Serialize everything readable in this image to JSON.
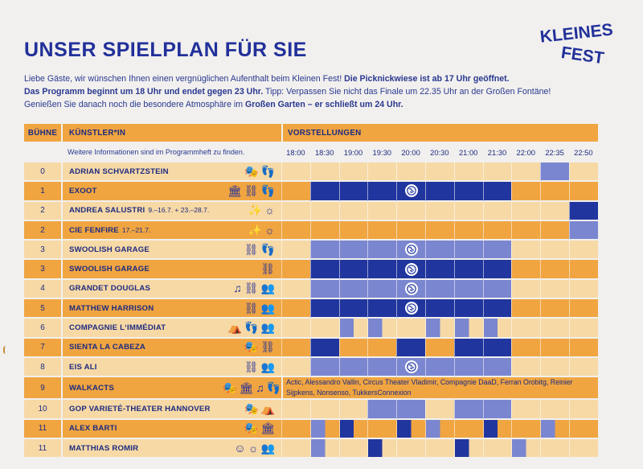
{
  "title": "UNSER SPIELPLAN FÜR SIE",
  "logo": {
    "line1": "KLEINES",
    "line2": "FEST"
  },
  "intro": {
    "p1": "Liebe Gäste, wir wünschen Ihnen einen vergnüglichen Aufenthalt beim Kleinen Fest! ",
    "p1_bold": "Die Picknickwiese ist ab 17 Uhr geöffnet.",
    "p2_bold": "Das Programm beginnt um 18 Uhr und endet gegen 23 Uhr.",
    "p2": " Tipp: Verpassen Sie nicht das Finale um 22.35 Uhr an der Großen Fontäne!",
    "p3": "Genießen Sie danach noch die besondere Atmosphäre im ",
    "p3_bold": "Großen Garten – er schließt um 24 Uhr."
  },
  "table": {
    "headers": {
      "stage": "BÜHNE",
      "artist": "KÜNSTLER*IN",
      "performances": "VORSTELLUNGEN"
    },
    "note": "Weitere Informationen sind im Programmheft zu finden.",
    "times": [
      "18:00",
      "18:30",
      "19:00",
      "19:30",
      "20:00",
      "20:30",
      "21:00",
      "21:30",
      "22:00",
      "22:35",
      "22:50"
    ],
    "rows": [
      {
        "stage": "0",
        "artist": "ADRIAN SCHVARTZSTEIN",
        "dates": "",
        "icons": [
          "🎭",
          "👣"
        ]
      },
      {
        "stage": "1",
        "artist": "EXOOT",
        "dates": "",
        "icons": [
          "🏛",
          "⛓",
          "👣"
        ]
      },
      {
        "stage": "2",
        "artist": "ANDREA SALUSTRI",
        "dates": "9.–16.7. + 23.–28.7.",
        "icons": [
          "✨",
          "☼"
        ]
      },
      {
        "stage": "2",
        "artist": "CIE FENFIRE",
        "dates": "17.–21.7.",
        "icons": [
          "✨",
          "☼"
        ]
      },
      {
        "stage": "3",
        "artist": "SWOOLISH GARAGE",
        "dates": "",
        "icons": [
          "⛓",
          "👣"
        ]
      },
      {
        "stage": "3",
        "artist": "SWOOLISH GARAGE",
        "dates": "",
        "icons": [
          "⛓"
        ]
      },
      {
        "stage": "4",
        "artist": "GRANDET DOUGLAS",
        "dates": "",
        "icons": [
          "♫",
          "⛓",
          "👥"
        ]
      },
      {
        "stage": "5",
        "artist": "MATTHEW HARRISON",
        "dates": "",
        "icons": [
          "⛓",
          "👥"
        ]
      },
      {
        "stage": "6",
        "artist": "COMPAGNIE L‘IMMÉDIAT",
        "dates": "",
        "icons": [
          "⛺",
          "👣",
          "👥"
        ]
      },
      {
        "stage": "7",
        "artist": "SIENTA LA CABEZA",
        "dates": "",
        "icons": [
          "🎭",
          "⛓"
        ]
      },
      {
        "stage": "8",
        "artist": "EIS ALI",
        "dates": "",
        "icons": [
          "⛓",
          "👥"
        ]
      },
      {
        "stage": "9",
        "artist": "WALKACTS",
        "dates": "",
        "icons": [
          "🎭",
          "🏛",
          "♫",
          "👣"
        ],
        "list": "Actic, Alessandro Vallin, Circus Theater Vladimir, Compagnie DaaD, Ferran Orobitg, Reinier Sijpkens, Nonsenso, TukkersConnexion"
      },
      {
        "stage": "10",
        "artist": "GOP VARIETÉ-THEATER HANNOVER",
        "dates": "",
        "icons": [
          "🎭",
          "⛺"
        ]
      },
      {
        "stage": "11",
        "artist": "ALEX BARTI",
        "dates": "",
        "icons": [
          "🎭",
          "🏛"
        ]
      },
      {
        "stage": "11",
        "artist": "MATTHIAS ROMIR",
        "dates": "",
        "icons": [
          "☺",
          "☼",
          "👥"
        ]
      }
    ]
  },
  "colors": {
    "accent_dark": "#f0a541",
    "accent_light": "#f7d9a6",
    "slot_dark": "#20359e",
    "slot_light": "#7a86d0",
    "title": "#22309a"
  },
  "icon_names": [
    "mask-icon",
    "footsteps-icon",
    "temple-icon",
    "hammock-icon",
    "sparkle-icon",
    "sun-icon",
    "music-icon",
    "people-icon",
    "tent-icon",
    "smiley-icon",
    "globe-icon"
  ]
}
